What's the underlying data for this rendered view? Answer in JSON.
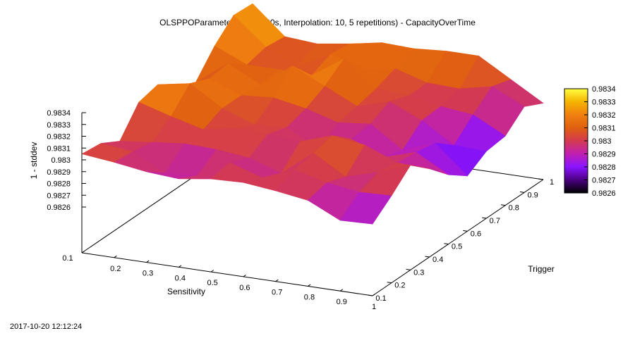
{
  "chart_data": {
    "type": "surface",
    "title": "OLSPPOParameterStudy (180s, Interpolation: 10, 5 repetitions) - CapacityOverTime",
    "xlabel": "Sensitivity",
    "ylabel": "Trigger",
    "zlabel": "1 - stddev",
    "x_ticks": [
      "0.1",
      "0.2",
      "0.3",
      "0.4",
      "0.5",
      "0.6",
      "0.7",
      "0.8",
      "0.9",
      "1"
    ],
    "y_ticks": [
      "0.1",
      "0.2",
      "0.3",
      "0.4",
      "0.5",
      "0.6",
      "0.7",
      "0.8",
      "0.9",
      "1"
    ],
    "z_ticks": [
      "0.9826",
      "0.9827",
      "0.9828",
      "0.9829",
      "0.983",
      "0.9831",
      "0.9832",
      "0.9833",
      "0.9834"
    ],
    "colorbar_ticks": [
      "0.9826",
      "0.9827",
      "0.9828",
      "0.9829",
      "0.983",
      "0.9831",
      "0.9832",
      "0.9833",
      "0.9834"
    ],
    "xlim": [
      0.1,
      1
    ],
    "ylim": [
      0.1,
      1
    ],
    "zlim": [
      0.9826,
      0.9834
    ],
    "colormap": [
      "#000000",
      "#4b0082",
      "#8a14ff",
      "#c020b0",
      "#d43a50",
      "#e06010",
      "#f08010",
      "#f4b400",
      "#ffff40"
    ],
    "x": [
      0.1,
      0.2,
      0.3,
      0.4,
      0.5,
      0.6,
      0.7,
      0.8,
      0.9,
      1.0
    ],
    "y": [
      0.1,
      0.2,
      0.3,
      0.4,
      0.5,
      0.6,
      0.7,
      0.8,
      0.9,
      1.0
    ],
    "z": [
      [
        0.98305,
        0.98302,
        0.98298,
        0.98296,
        0.983,
        0.98301,
        0.98298,
        0.98294,
        0.98281,
        0.98282
      ],
      [
        0.98303,
        0.983,
        0.98286,
        0.98288,
        0.98303,
        0.98294,
        0.98305,
        0.98298,
        0.98294,
        0.98295
      ],
      [
        0.98294,
        0.98297,
        0.983,
        0.98299,
        0.98296,
        0.98287,
        0.98308,
        0.98292,
        0.983,
        0.9831
      ],
      [
        0.98316,
        0.98308,
        0.98301,
        0.98306,
        0.98305,
        0.98303,
        0.98312,
        0.98308,
        0.98297,
        0.98296
      ],
      [
        0.9832,
        0.98325,
        0.98308,
        0.98298,
        0.983,
        0.98284,
        0.98298,
        0.98287,
        0.98295,
        0.9828
      ],
      [
        0.98296,
        0.98318,
        0.98308,
        0.9831,
        0.98305,
        0.98297,
        0.983,
        0.98282,
        0.98292,
        0.98268
      ],
      [
        0.983,
        0.9832,
        0.98306,
        0.98326,
        0.98313,
        0.983,
        0.98308,
        0.98296,
        0.98279,
        0.98278
      ],
      [
        0.9832,
        0.98308,
        0.98308,
        0.98307,
        0.98325,
        0.98304,
        0.98302,
        0.98297,
        0.98294,
        0.9828
      ],
      [
        0.98335,
        0.98312,
        0.983,
        0.98314,
        0.98306,
        0.9831,
        0.98302,
        0.98301,
        0.98307,
        0.98294
      ],
      [
        0.98334,
        0.9831,
        0.98308,
        0.98312,
        0.98317,
        0.98316,
        0.98318,
        0.98318,
        0.98302,
        0.98286
      ]
    ],
    "z_row_order": "rows indexed by Trigger (0.1 to 1), columns by Sensitivity (0.1 to 1)",
    "grid": false,
    "colorbar_position": "right"
  },
  "timestamp": "2017-10-20 12:12:24"
}
